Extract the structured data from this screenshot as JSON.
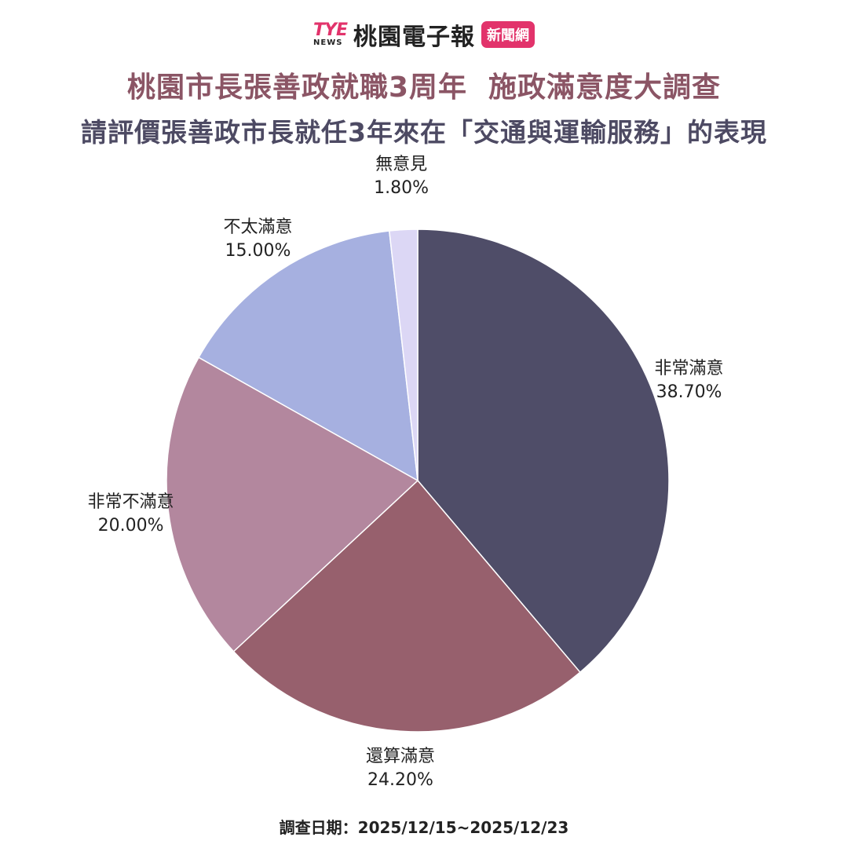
{
  "brand": {
    "logo_main": "TYE",
    "logo_sub": "NEWS",
    "name": "桃園電子報",
    "badge": "新聞網"
  },
  "title": "桃園市長張善政就職3周年  施政滿意度大調查",
  "subtitle": "請評價張善政市長就任3年來在「交通與運輸服務」的表現",
  "footer": "調查日期：2025/12/15~2025/12/23",
  "colors": {
    "title": "#8b5565",
    "subtitle": "#4d4a63",
    "brand_accent": "#e2336b"
  },
  "chart_data": {
    "type": "pie",
    "title": "請評價張善政市長就任3年來在「交通與運輸服務」的表現",
    "start": "12 o'clock",
    "direction": "clockwise",
    "slices": [
      {
        "label": "非常滿意",
        "value": 38.7,
        "display": "38.70%",
        "color": "#4f4d68"
      },
      {
        "label": "還算滿意",
        "value": 24.2,
        "display": "24.20%",
        "color": "#97606d"
      },
      {
        "label": "非常不滿意",
        "value": 20.0,
        "display": "20.00%",
        "color": "#b3879e"
      },
      {
        "label": "不太滿意",
        "value": 15.0,
        "display": "15.00%",
        "color": "#a6b0e0"
      },
      {
        "label": "無意見",
        "value": 1.8,
        "display": "1.80%",
        "color": "#dcd7f5"
      }
    ]
  }
}
